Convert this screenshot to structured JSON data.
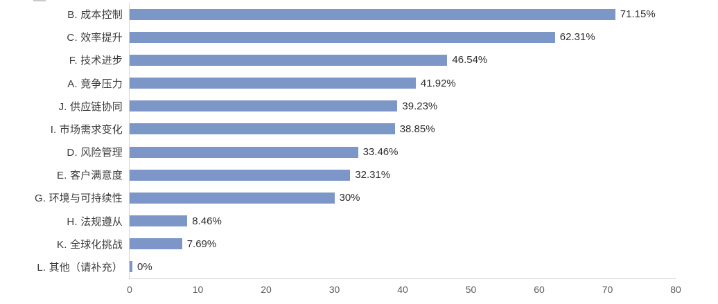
{
  "chart_data": {
    "type": "bar",
    "orientation": "horizontal",
    "title": "",
    "xlabel": "",
    "ylabel": "",
    "categories": [
      "B. 成本控制",
      "C. 效率提升",
      "F. 技术进步",
      "A. 竞争压力",
      "J. 供应链协同",
      "I. 市场需求变化",
      "D. 风险管理",
      "E. 客户满意度",
      "G. 环境与可持续性",
      "H. 法规遵从",
      "K. 全球化挑战",
      "L. 其他（请补充）"
    ],
    "values": [
      71.15,
      62.31,
      46.54,
      41.92,
      39.23,
      38.85,
      33.46,
      32.31,
      30,
      8.46,
      7.69,
      0
    ],
    "value_labels": [
      "71.15%",
      "62.31%",
      "46.54%",
      "41.92%",
      "39.23%",
      "38.85%",
      "33.46%",
      "32.31%",
      "30%",
      "8.46%",
      "7.69%",
      "0%"
    ],
    "xlim": [
      0,
      80
    ],
    "x_ticks": [
      0,
      10,
      20,
      30,
      40,
      50,
      60,
      70,
      80
    ],
    "grid": false,
    "legend": false,
    "bar_color": "#7C96C8",
    "axis_line_color": "#D4D4DA",
    "category_label_color": "#3B3B3B",
    "value_label_color": "#2F2F2F",
    "tick_label_color": "#595959"
  }
}
